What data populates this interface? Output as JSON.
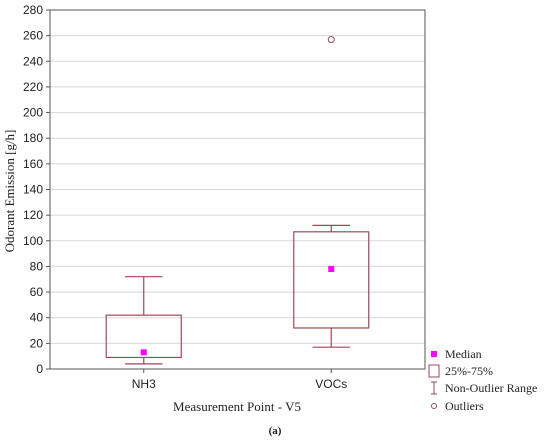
{
  "chart_data": {
    "type": "box",
    "ylabel": "Odorant Emission [g/h]",
    "xlabel": "Measurement Point - V5",
    "caption": "(a)",
    "ylim": [
      0,
      280
    ],
    "yticks": [
      0,
      20,
      40,
      60,
      80,
      100,
      120,
      140,
      160,
      180,
      200,
      220,
      240,
      260,
      280
    ],
    "grid": true,
    "legend_position": "bottom-right outside",
    "colors": {
      "box": "#9b4a55",
      "median": "#ff00ff",
      "grid": "#d8d8d8"
    },
    "categories": [
      "NH3",
      "VOCs"
    ],
    "boxes": [
      {
        "category": "NH3",
        "median": 13,
        "q1": 9,
        "q3": 42,
        "whisker_low": 4,
        "whisker_high": 72,
        "outliers": []
      },
      {
        "category": "VOCs",
        "median": 78,
        "q1": 32,
        "q3": 107,
        "whisker_low": 17,
        "whisker_high": 112,
        "outliers": [
          257
        ]
      }
    ],
    "legend": [
      {
        "label": "Median",
        "symbol": "median"
      },
      {
        "label": "25%-75%",
        "symbol": "box"
      },
      {
        "label": "Non-Outlier Range",
        "symbol": "whisker"
      },
      {
        "label": "Outliers",
        "symbol": "outlier"
      }
    ]
  }
}
